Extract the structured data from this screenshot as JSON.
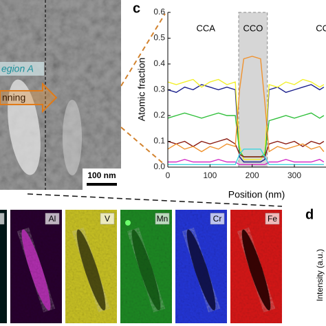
{
  "figure": {
    "image_labels": {
      "region": "egion A",
      "arrow": "nning",
      "scale_bar": "100 nm"
    },
    "panel_c": "c",
    "panel_d": "d",
    "d_ylabel": "Intensity (a.u.)",
    "maps": [
      "Ti",
      "Al",
      "V",
      "Mn",
      "Cr",
      "Fe"
    ]
  },
  "chart_data": {
    "type": "line",
    "xlabel": "Position (nm)",
    "ylabel": "Atomic fraction",
    "annotations": [
      "CCA",
      "CCO",
      "CC"
    ],
    "shaded_region": [
      168,
      236
    ],
    "xlim": [
      0,
      375
    ],
    "ylim": [
      0,
      0.6
    ],
    "xticks": [
      0,
      100,
      200,
      300
    ],
    "yticks": [
      {
        "value": 0,
        "label": "0.0"
      },
      0.1,
      0.2,
      0.3,
      0.4,
      0.5,
      0.6
    ],
    "x": [
      0,
      20,
      40,
      60,
      80,
      100,
      120,
      140,
      160,
      170,
      180,
      200,
      220,
      230,
      240,
      260,
      280,
      300,
      320,
      340,
      360,
      370
    ],
    "series": [
      {
        "color": "#1a1f8c",
        "values": [
          0.3,
          0.29,
          0.31,
          0.3,
          0.32,
          0.31,
          0.3,
          0.31,
          0.3,
          0.04,
          0.02,
          0.02,
          0.02,
          0.03,
          0.3,
          0.31,
          0.29,
          0.3,
          0.31,
          0.32,
          0.3,
          0.31
        ]
      },
      {
        "color": "#f2ef2a",
        "values": [
          0.33,
          0.32,
          0.33,
          0.34,
          0.31,
          0.33,
          0.34,
          0.32,
          0.33,
          0.08,
          0.03,
          0.03,
          0.03,
          0.06,
          0.32,
          0.31,
          0.33,
          0.32,
          0.34,
          0.33,
          0.31,
          0.32
        ]
      },
      {
        "color": "#2fbf3a",
        "values": [
          0.19,
          0.2,
          0.21,
          0.2,
          0.19,
          0.2,
          0.21,
          0.2,
          0.2,
          0.06,
          0.04,
          0.04,
          0.04,
          0.05,
          0.18,
          0.19,
          0.2,
          0.19,
          0.2,
          0.21,
          0.19,
          0.2
        ]
      },
      {
        "color": "#8b1a10",
        "values": [
          0.1,
          0.09,
          0.1,
          0.08,
          0.1,
          0.09,
          0.1,
          0.11,
          0.09,
          0.05,
          0.04,
          0.04,
          0.04,
          0.04,
          0.09,
          0.1,
          0.09,
          0.1,
          0.08,
          0.1,
          0.09,
          0.1
        ]
      },
      {
        "color": "#f0922e",
        "values": [
          0.07,
          0.09,
          0.07,
          0.08,
          0.06,
          0.08,
          0.07,
          0.09,
          0.08,
          0.3,
          0.42,
          0.43,
          0.42,
          0.25,
          0.06,
          0.08,
          0.07,
          0.08,
          0.09,
          0.07,
          0.08,
          0.06
        ]
      },
      {
        "color": "#d42fc8",
        "values": [
          0.02,
          0.02,
          0.03,
          0.02,
          0.02,
          0.02,
          0.03,
          0.02,
          0.02,
          0.01,
          0.01,
          0.01,
          0.01,
          0.01,
          0.02,
          0.02,
          0.03,
          0.02,
          0.02,
          0.02,
          0.03,
          0.02
        ]
      },
      {
        "color": "#3cd6e0",
        "values": [
          0.01,
          0.01,
          0.01,
          0.01,
          0.01,
          0.01,
          0.01,
          0.01,
          0.01,
          0.05,
          0.07,
          0.07,
          0.07,
          0.04,
          0.01,
          0.01,
          0.01,
          0.01,
          0.01,
          0.01,
          0.01,
          0.01
        ]
      }
    ]
  }
}
